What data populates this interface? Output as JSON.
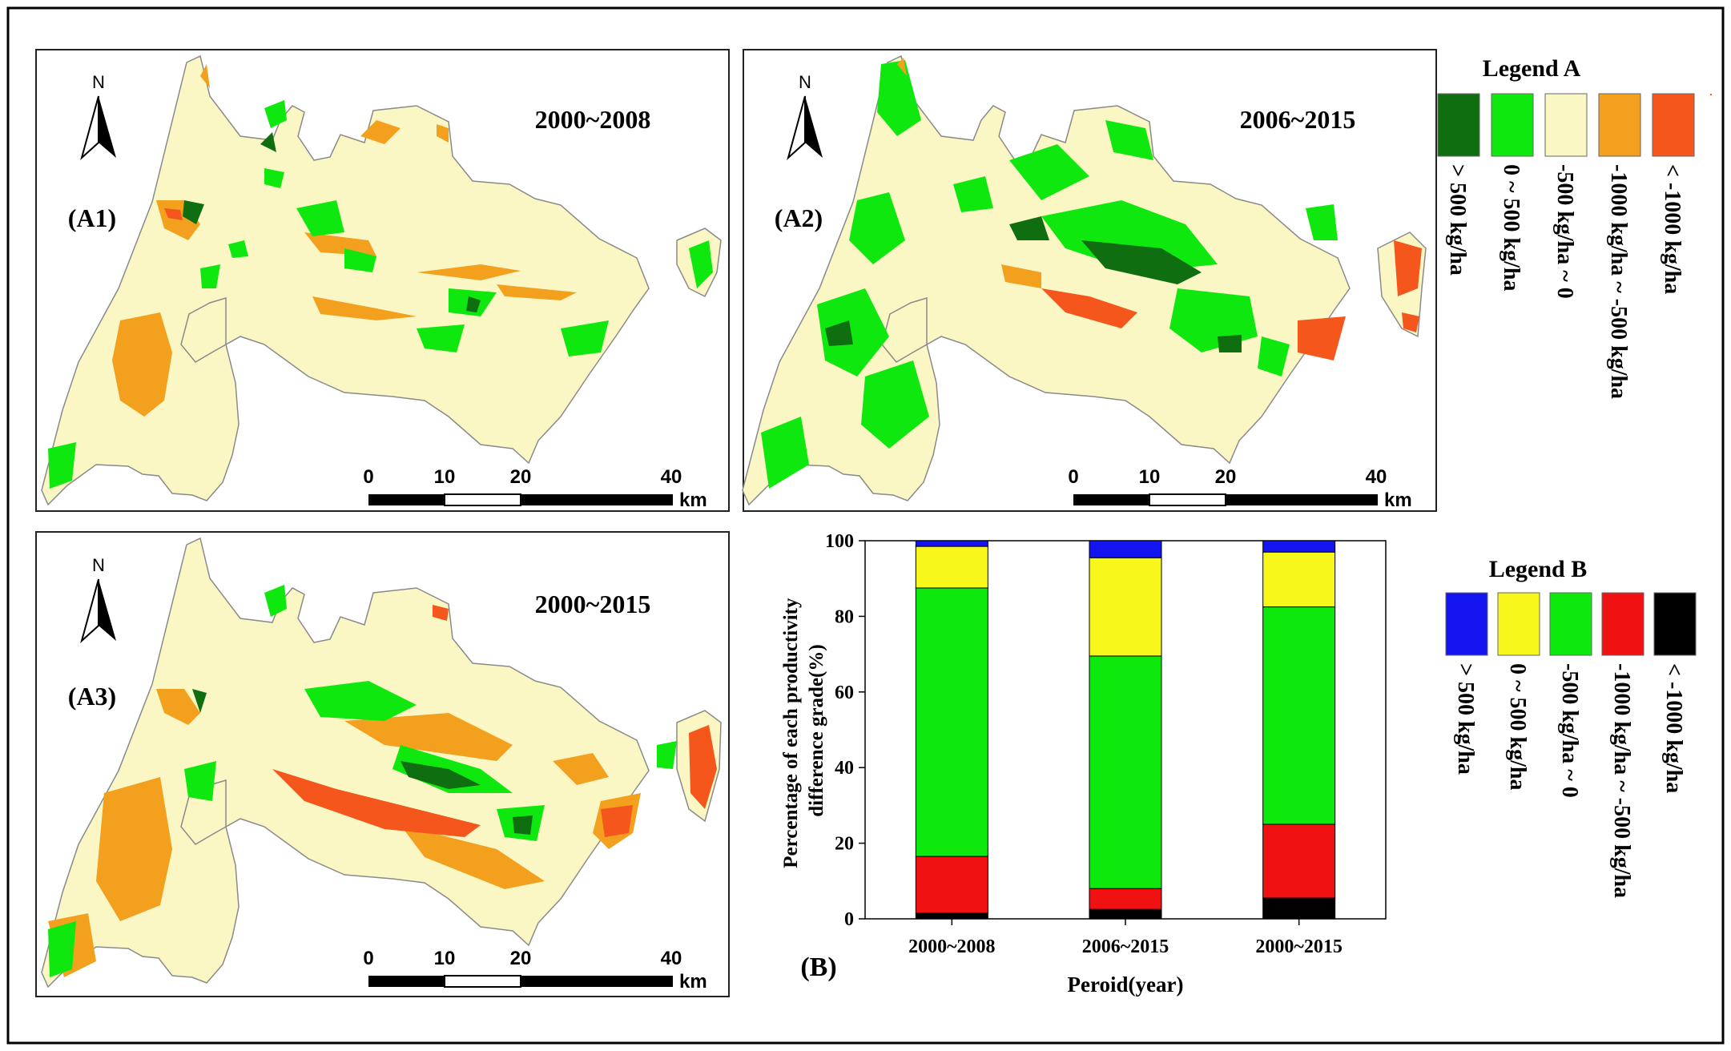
{
  "maps": [
    {
      "panel_label": "(A1)",
      "period": "2000~2008",
      "north": "N"
    },
    {
      "panel_label": "(A2)",
      "period": "2006~2015",
      "north": "N"
    },
    {
      "panel_label": "(A3)",
      "period": "2000~2015",
      "north": "N"
    }
  ],
  "scale_bar": {
    "ticks": [
      "0",
      "10",
      "20",
      "40"
    ],
    "unit": "km"
  },
  "legend_a": {
    "title": "Legend A",
    "items": [
      {
        "label": "> 500 kg/ha",
        "color": "#0f6e0f"
      },
      {
        "label": "0 ~ 500 kg/ha",
        "color": "#0ee80e"
      },
      {
        "label": "-500 kg/ha ~ 0",
        "color": "#fbf7c4"
      },
      {
        "label": "-1000 kg/ha ~ -500 kg/ha",
        "color": "#f2a01e"
      },
      {
        "label": "< -1000 kg/ha",
        "color": "#f4561b"
      }
    ]
  },
  "legend_b": {
    "title": "Legend B",
    "items": [
      {
        "label": "> 500 kg/ha",
        "color": "#1414f0"
      },
      {
        "label": "0 ~ 500 kg/ha",
        "color": "#f7f71c"
      },
      {
        "label": "-500 kg/ha ~ 0",
        "color": "#0de80d"
      },
      {
        "label": "-1000 kg/ha ~ -500 kg/ha",
        "color": "#f01212"
      },
      {
        "label": "< -1000 kg/ha",
        "color": "#000000"
      }
    ]
  },
  "panel_b_label": "(B)",
  "chart_data": {
    "type": "bar",
    "stacked": true,
    "categories": [
      "2000~2008",
      "2006~2015",
      "2000~2015"
    ],
    "series": [
      {
        "name": "< -1000 kg/ha",
        "color": "#000000",
        "values": [
          1.5,
          2.5,
          5.5
        ]
      },
      {
        "name": "-1000 kg/ha ~ -500 kg/ha",
        "color": "#f01212",
        "values": [
          15,
          5.5,
          19.5
        ]
      },
      {
        "name": "-500 kg/ha ~ 0",
        "color": "#0de80d",
        "values": [
          71,
          61.5,
          57.5
        ]
      },
      {
        "name": "0 ~ 500 kg/ha",
        "color": "#f7f71c",
        "values": [
          11,
          26,
          14.5
        ]
      },
      {
        "name": "> 500 kg/ha",
        "color": "#1414f0",
        "values": [
          1.5,
          4.5,
          3
        ]
      }
    ],
    "ylim": [
      0,
      100
    ],
    "yticks": [
      "0",
      "20",
      "40",
      "60",
      "80",
      "100"
    ],
    "xlabel": "Peroid(year)",
    "ylabel": "Percentage of each productivity difference grade(%)",
    "grid": false
  }
}
